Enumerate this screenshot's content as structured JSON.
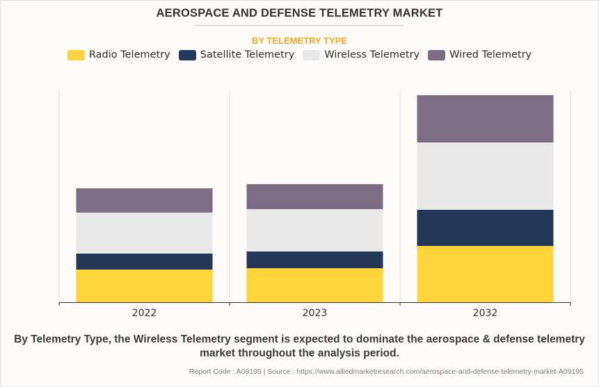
{
  "title": "AEROSPACE AND DEFENSE TELEMETRY MARKET",
  "subtitle": "BY TELEMETRY TYPE",
  "caption": "By Telemetry Type, the Wireless Telemetry segment is expected to dominate the aerospace & defense telemetry market throughout the analysis period.",
  "source": "Report Code : A09195  |  Source : https://www.alliedmarketresearch.com/aerospace-and-defense-telemetry-market-A09195",
  "colors": {
    "radio": "#fdd43a",
    "satellite": "#263859",
    "wireless": "#e8e8e9",
    "wired": "#7d6d82",
    "accent": "#f5a623"
  },
  "chart_data": {
    "type": "bar",
    "stacked": true,
    "title": "AEROSPACE AND DEFENSE TELEMETRY MARKET",
    "subtitle": "BY TELEMETRY TYPE",
    "xlabel": "",
    "ylabel": "",
    "y_axis_visible": false,
    "ylim": [
      0,
      305
    ],
    "value_units": "relative (no axis values shown; estimated from bar proportions)",
    "grid": "vertical separators between categories",
    "legend_position": "top-center",
    "categories": [
      "2022",
      "2023",
      "2032"
    ],
    "series": [
      {
        "name": "Radio Telemetry",
        "color": "#fdd43a",
        "values": [
          47,
          49,
          81
        ]
      },
      {
        "name": "Satellite Telemetry",
        "color": "#263859",
        "values": [
          23,
          24,
          52
        ]
      },
      {
        "name": "Wireless Telemetry",
        "color": "#e8e8e9",
        "values": [
          59,
          61,
          97
        ]
      },
      {
        "name": "Wired Telemetry",
        "color": "#7d6d82",
        "values": [
          35,
          36,
          68
        ]
      }
    ]
  }
}
